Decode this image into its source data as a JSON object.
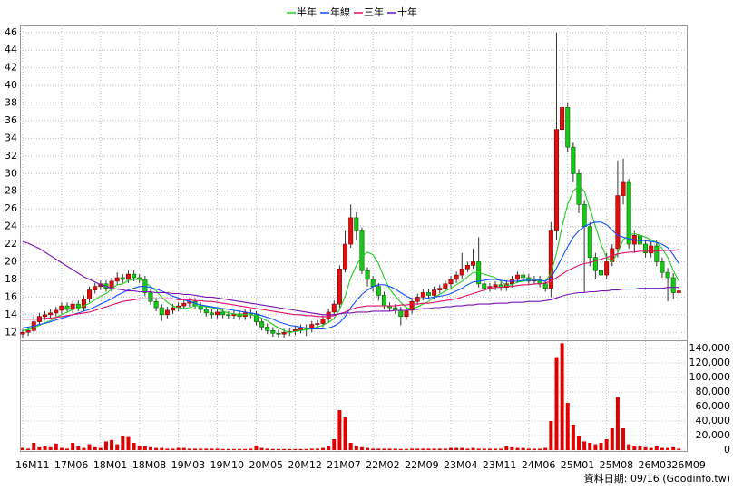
{
  "chart_data": {
    "type": "candlestick",
    "legend": "top",
    "grid": true,
    "up_color": "#e01010",
    "down_color": "#18c818",
    "ylim": [
      11.1,
      46.8
    ],
    "yticks": [
      12,
      14,
      16,
      18,
      20,
      22,
      24,
      26,
      28,
      30,
      32,
      34,
      36,
      38,
      40,
      42,
      44,
      46
    ],
    "categories": [
      "16M11",
      null,
      null,
      null,
      null,
      null,
      null,
      "17M06",
      null,
      null,
      null,
      null,
      null,
      null,
      "18M01",
      null,
      null,
      null,
      null,
      null,
      null,
      "18M08",
      null,
      null,
      null,
      null,
      null,
      null,
      "19M03",
      null,
      null,
      null,
      null,
      null,
      null,
      "19M10",
      null,
      null,
      null,
      null,
      null,
      null,
      "20M05",
      null,
      null,
      null,
      null,
      null,
      null,
      "20M12",
      null,
      null,
      null,
      null,
      null,
      null,
      "21M07",
      null,
      null,
      null,
      null,
      null,
      null,
      "22M02",
      null,
      null,
      null,
      null,
      null,
      null,
      "22M09",
      null,
      null,
      null,
      null,
      null,
      null,
      "23M04",
      null,
      null,
      null,
      null,
      null,
      null,
      "23M11",
      null,
      null,
      null,
      null,
      null,
      null,
      "24M06",
      null,
      null,
      null,
      null,
      null,
      null,
      "25M01",
      null,
      null,
      null,
      null,
      null,
      null,
      "25M08",
      null,
      null,
      null,
      null,
      null,
      null,
      "26M03",
      null,
      null,
      null,
      null,
      null,
      "26M09"
    ],
    "open": [
      11.8,
      12.0,
      12.2,
      13.2,
      13.8,
      14.0,
      14.2,
      14.5,
      15.0,
      14.6,
      15.2,
      14.8,
      15.8,
      16.8,
      17.2,
      17.5,
      17.0,
      17.8,
      18.2,
      18.0,
      18.6,
      18.2,
      18.0,
      16.5,
      15.5,
      14.8,
      14.0,
      14.5,
      14.8,
      15.0,
      15.3,
      15.5,
      15.0,
      14.6,
      14.2,
      14.0,
      14.3,
      14.0,
      13.9,
      14.1,
      13.8,
      14.2,
      14.0,
      13.2,
      12.6,
      12.2,
      11.9,
      11.8,
      12.0,
      12.1,
      12.3,
      12.5,
      12.4,
      12.9,
      13.0,
      13.5,
      14.3,
      15.2,
      19.2,
      22.0,
      25.0,
      23.5,
      19.0,
      18.0,
      17.2,
      16.2,
      15.0,
      14.8,
      14.5,
      13.8,
      14.5,
      15.5,
      16.0,
      16.5,
      16.2,
      16.8,
      17.0,
      17.5,
      18.0,
      18.5,
      19.2,
      19.6,
      20.0,
      17.5,
      17.0,
      17.2,
      17.4,
      17.1,
      17.5,
      18.0,
      18.5,
      18.2,
      17.8,
      18.0,
      17.5,
      17.0,
      23.5,
      35.0,
      37.5,
      33.0,
      30.0,
      26.5,
      24.0,
      20.5,
      19.0,
      18.5,
      20.0,
      21.5,
      27.5,
      29.0,
      22.0,
      23.0,
      22.0,
      21.0,
      21.8,
      20.0,
      18.8,
      18.2,
      16.5
    ],
    "high": [
      12.4,
      12.6,
      14.0,
      14.2,
      14.4,
      14.6,
      14.9,
      15.4,
      15.4,
      15.6,
      15.6,
      16.2,
      17.2,
      17.6,
      17.9,
      17.9,
      18.2,
      18.8,
      18.6,
      19.0,
      19.0,
      18.6,
      18.4,
      16.9,
      15.9,
      15.2,
      14.9,
      15.2,
      15.4,
      15.7,
      15.9,
      15.9,
      15.4,
      14.9,
      14.6,
      14.7,
      14.7,
      14.4,
      14.5,
      14.5,
      14.6,
      14.6,
      14.4,
      13.6,
      13.0,
      12.6,
      12.3,
      12.4,
      12.5,
      12.7,
      12.9,
      12.9,
      13.3,
      13.4,
      13.9,
      14.7,
      15.6,
      19.6,
      23.5,
      26.5,
      25.6,
      23.9,
      19.4,
      18.4,
      17.6,
      16.6,
      15.4,
      15.2,
      14.9,
      14.9,
      15.9,
      16.4,
      16.9,
      16.9,
      17.2,
      17.4,
      17.9,
      18.4,
      18.9,
      21.0,
      20.0,
      21.5,
      22.8,
      17.9,
      17.6,
      17.8,
      17.8,
      17.9,
      18.4,
      18.9,
      18.9,
      18.6,
      18.4,
      18.4,
      17.9,
      24.5,
      46.0,
      44.3,
      38.0,
      33.5,
      30.5,
      27.0,
      24.5,
      21.0,
      19.5,
      21.0,
      22.0,
      31.5,
      31.7,
      29.4,
      23.5,
      24.0,
      22.5,
      22.3,
      22.5,
      20.5,
      19.3,
      18.7,
      17.1
    ],
    "low": [
      11.4,
      11.6,
      11.8,
      12.8,
      13.4,
      13.6,
      13.8,
      14.1,
      14.2,
      14.2,
      14.4,
      14.4,
      15.4,
      16.4,
      16.8,
      16.6,
      16.6,
      17.4,
      17.6,
      17.6,
      17.8,
      17.6,
      16.1,
      15.1,
      14.4,
      13.3,
      13.6,
      14.1,
      14.4,
      14.6,
      14.9,
      14.6,
      14.2,
      13.8,
      13.6,
      13.6,
      13.6,
      13.5,
      13.5,
      13.4,
      13.4,
      13.6,
      12.8,
      12.2,
      11.8,
      11.5,
      11.4,
      11.4,
      11.6,
      11.7,
      11.9,
      11.6,
      12.0,
      12.6,
      12.6,
      13.1,
      13.9,
      14.8,
      18.8,
      21.6,
      22.5,
      18.6,
      17.2,
      16.6,
      15.6,
      14.6,
      14.4,
      14.1,
      12.8,
      13.4,
      14.1,
      15.1,
      15.6,
      15.8,
      15.8,
      16.4,
      16.6,
      17.1,
      17.6,
      18.1,
      18.8,
      19.2,
      17.1,
      16.6,
      16.6,
      16.8,
      16.7,
      16.7,
      17.1,
      17.6,
      17.8,
      17.4,
      17.4,
      17.1,
      16.6,
      16.0,
      22.5,
      33.0,
      32.5,
      29.0,
      25.5,
      16.5,
      19.5,
      18.0,
      18.0,
      18.0,
      19.5,
      20.5,
      26.5,
      21.5,
      21.0,
      21.5,
      20.5,
      20.5,
      19.5,
      18.2,
      15.5,
      15.8,
      16.2
    ],
    "close": [
      12.0,
      12.2,
      13.2,
      13.8,
      14.0,
      14.2,
      14.5,
      15.0,
      14.6,
      15.2,
      14.8,
      15.8,
      16.8,
      17.2,
      17.5,
      17.0,
      17.8,
      18.2,
      18.0,
      18.6,
      18.2,
      18.0,
      16.5,
      15.5,
      14.8,
      14.0,
      14.5,
      14.8,
      15.0,
      15.3,
      15.5,
      15.0,
      14.6,
      14.2,
      14.0,
      14.3,
      14.0,
      13.9,
      14.1,
      13.8,
      14.2,
      14.0,
      13.2,
      12.6,
      12.2,
      11.9,
      11.8,
      12.0,
      12.1,
      12.3,
      12.5,
      12.4,
      12.9,
      13.0,
      13.5,
      14.3,
      15.2,
      19.2,
      22.0,
      25.0,
      23.5,
      19.0,
      18.0,
      17.2,
      16.2,
      15.0,
      14.8,
      14.5,
      13.8,
      14.5,
      15.5,
      16.0,
      16.5,
      16.2,
      16.8,
      17.0,
      17.5,
      18.0,
      18.5,
      19.2,
      19.6,
      20.0,
      17.5,
      17.0,
      17.2,
      17.4,
      17.1,
      17.5,
      18.0,
      18.5,
      18.2,
      17.8,
      18.0,
      17.5,
      17.0,
      23.5,
      35.0,
      37.5,
      33.0,
      30.0,
      26.5,
      24.0,
      20.5,
      19.0,
      18.5,
      20.0,
      21.5,
      27.5,
      29.0,
      22.0,
      23.0,
      22.0,
      21.0,
      21.8,
      20.0,
      18.8,
      18.2,
      16.5,
      16.7
    ],
    "series": [
      {
        "name": "半年",
        "color": "#22cc22",
        "values": [
          12.2,
          12.3,
          12.5,
          12.8,
          13.1,
          13.3,
          13.7,
          14.0,
          14.3,
          14.6,
          14.7,
          15.0,
          15.3,
          15.7,
          16.1,
          16.4,
          16.9,
          17.4,
          17.5,
          17.9,
          18.0,
          18.0,
          17.7,
          17.2,
          16.7,
          16.0,
          15.4,
          15.0,
          14.8,
          14.7,
          14.8,
          15.0,
          15.0,
          14.9,
          14.8,
          14.7,
          14.4,
          14.2,
          14.1,
          14.0,
          14.0,
          14.0,
          13.9,
          13.6,
          13.3,
          12.9,
          12.5,
          12.2,
          12.0,
          12.1,
          12.2,
          12.3,
          12.4,
          12.6,
          12.8,
          13.1,
          13.6,
          14.6,
          16.1,
          18.2,
          19.6,
          20.6,
          21.1,
          20.8,
          19.8,
          18.2,
          16.9,
          16.1,
          15.4,
          14.8,
          14.6,
          14.9,
          15.2,
          15.5,
          16.0,
          16.3,
          16.7,
          17.0,
          17.4,
          17.8,
          18.3,
          18.8,
          18.8,
          18.6,
          18.4,
          18.2,
          17.8,
          17.3,
          17.4,
          17.7,
          17.8,
          17.9,
          18.0,
          17.9,
          17.8,
          18.7,
          21.0,
          24.0,
          26.5,
          28.0,
          28.6,
          28.0,
          26.0,
          24.0,
          22.0,
          20.5,
          20.0,
          21.0,
          22.5,
          23.0,
          23.2,
          23.0,
          22.8,
          22.5,
          22.2,
          21.5,
          20.5,
          19.0,
          17.8
        ]
      },
      {
        "name": "年線",
        "color": "#1050ff",
        "values": [
          12.5,
          12.6,
          12.7,
          12.9,
          13.0,
          13.2,
          13.4,
          13.6,
          13.8,
          14.0,
          14.2,
          14.4,
          14.6,
          14.9,
          15.2,
          15.5,
          15.8,
          16.2,
          16.5,
          16.8,
          17.0,
          17.2,
          17.2,
          17.1,
          16.9,
          16.7,
          16.4,
          16.1,
          15.9,
          15.7,
          15.5,
          15.3,
          15.1,
          15.0,
          14.9,
          14.8,
          14.7,
          14.6,
          14.5,
          14.4,
          14.3,
          14.2,
          14.1,
          13.9,
          13.7,
          13.5,
          13.2,
          13.0,
          12.8,
          12.7,
          12.6,
          12.5,
          12.4,
          12.4,
          12.4,
          12.5,
          12.7,
          13.1,
          13.8,
          14.8,
          15.6,
          16.3,
          16.8,
          17.2,
          17.4,
          17.4,
          17.2,
          16.9,
          16.5,
          16.1,
          15.8,
          15.8,
          15.8,
          15.9,
          16.0,
          16.1,
          16.2,
          16.4,
          16.7,
          17.0,
          17.4,
          17.7,
          17.8,
          17.9,
          18.0,
          18.0,
          17.9,
          17.8,
          17.8,
          17.8,
          17.9,
          17.9,
          17.9,
          17.9,
          17.8,
          18.2,
          19.3,
          20.5,
          21.7,
          22.8,
          23.5,
          24.0,
          24.3,
          24.5,
          24.5,
          24.2,
          23.6,
          23.0,
          22.8,
          22.6,
          22.5,
          22.4,
          22.4,
          22.3,
          22.2,
          22.0,
          21.6,
          20.8,
          19.8
        ]
      },
      {
        "name": "三年",
        "color": "#e0106a",
        "values": [
          13.5,
          13.5,
          13.5,
          13.5,
          13.6,
          13.6,
          13.7,
          13.8,
          13.9,
          14.0,
          14.1,
          14.2,
          14.3,
          14.5,
          14.7,
          14.9,
          15.1,
          15.3,
          15.5,
          15.6,
          15.7,
          15.8,
          15.8,
          15.8,
          15.8,
          15.8,
          15.8,
          15.8,
          15.7,
          15.7,
          15.7,
          15.6,
          15.6,
          15.5,
          15.5,
          15.4,
          15.3,
          15.2,
          15.1,
          15.0,
          14.9,
          14.8,
          14.7,
          14.6,
          14.5,
          14.4,
          14.3,
          14.2,
          14.1,
          14.0,
          14.0,
          13.9,
          13.9,
          13.8,
          13.8,
          13.8,
          13.9,
          14.1,
          14.3,
          14.6,
          14.8,
          14.9,
          15.0,
          15.0,
          15.0,
          15.0,
          15.0,
          15.0,
          15.1,
          15.1,
          15.2,
          15.2,
          15.3,
          15.3,
          15.4,
          15.5,
          15.6,
          15.7,
          15.8,
          16.0,
          16.2,
          16.4,
          16.6,
          16.8,
          17.0,
          17.1,
          17.1,
          17.2,
          17.2,
          17.3,
          17.4,
          17.4,
          17.5,
          17.5,
          17.6,
          17.8,
          18.2,
          18.6,
          19.0,
          19.3,
          19.6,
          19.8,
          19.9,
          20.1,
          20.3,
          20.5,
          20.7,
          20.9,
          21.0,
          21.1,
          21.1,
          21.2,
          21.2,
          21.2,
          21.2,
          21.3,
          21.3,
          21.3,
          21.4
        ]
      },
      {
        "name": "十年",
        "color": "#7a10b8",
        "values": [
          22.3,
          22.1,
          21.8,
          21.5,
          21.1,
          20.7,
          20.3,
          19.9,
          19.5,
          19.1,
          18.7,
          18.3,
          18.0,
          17.7,
          17.4,
          17.2,
          17.0,
          16.9,
          16.8,
          16.7,
          16.7,
          16.6,
          16.6,
          16.6,
          16.5,
          16.5,
          16.5,
          16.4,
          16.4,
          16.3,
          16.3,
          16.2,
          16.1,
          16.0,
          16.0,
          15.9,
          15.8,
          15.7,
          15.6,
          15.5,
          15.4,
          15.3,
          15.2,
          15.1,
          15.0,
          14.9,
          14.8,
          14.7,
          14.6,
          14.5,
          14.4,
          14.3,
          14.2,
          14.1,
          14.0,
          14.0,
          14.0,
          14.1,
          14.2,
          14.2,
          14.3,
          14.3,
          14.3,
          14.4,
          14.4,
          14.4,
          14.4,
          14.5,
          14.5,
          14.5,
          14.6,
          14.6,
          14.7,
          14.7,
          14.8,
          14.8,
          14.9,
          14.9,
          15.0,
          15.0,
          15.1,
          15.1,
          15.2,
          15.2,
          15.2,
          15.3,
          15.3,
          15.3,
          15.4,
          15.4,
          15.4,
          15.5,
          15.5,
          15.5,
          15.6,
          15.7,
          15.9,
          16.1,
          16.3,
          16.4,
          16.5,
          16.5,
          16.6,
          16.6,
          16.7,
          16.7,
          16.8,
          16.8,
          16.9,
          16.9,
          16.9,
          17.0,
          17.0,
          17.0,
          17.0,
          17.0,
          17.1,
          17.1,
          17.1
        ]
      }
    ],
    "volume": {
      "color": "#e00000",
      "ylim": [
        0,
        150000
      ],
      "yticks": [
        0,
        {
          "value": 20000,
          "label": "20,000"
        },
        {
          "value": 40000,
          "label": "40,000"
        },
        {
          "value": 60000,
          "label": "60,000"
        },
        {
          "value": 80000,
          "label": "80,000"
        },
        {
          "value": 100000,
          "label": "100,000"
        },
        {
          "value": 120000,
          "label": "120,000"
        },
        {
          "value": 140000,
          "label": "140,000"
        }
      ],
      "values": [
        3000,
        2000,
        10000,
        4000,
        5000,
        4000,
        9000,
        3000,
        2000,
        10000,
        5000,
        3000,
        8000,
        4000,
        3000,
        12000,
        14000,
        8000,
        20000,
        18000,
        10000,
        6000,
        5000,
        4000,
        3000,
        3000,
        2000,
        2000,
        3000,
        3000,
        2000,
        2000,
        2000,
        2000,
        2000,
        2000,
        1500,
        1500,
        1500,
        1500,
        1500,
        2000,
        6000,
        3000,
        2000,
        1500,
        1500,
        1500,
        1500,
        1500,
        1500,
        1500,
        2000,
        2000,
        3000,
        5000,
        15000,
        55000,
        45000,
        10000,
        6000,
        4000,
        3000,
        2000,
        2000,
        2000,
        2000,
        2000,
        1500,
        1500,
        2000,
        2000,
        2000,
        2000,
        2000,
        2000,
        2000,
        3000,
        3000,
        3000,
        2000,
        3000,
        2000,
        2000,
        2000,
        2000,
        2000,
        5000,
        4000,
        3000,
        3000,
        2000,
        2000,
        2000,
        3000,
        40000,
        128000,
        147000,
        65000,
        35000,
        20000,
        12000,
        10000,
        8000,
        10000,
        15000,
        30000,
        73000,
        30000,
        8000,
        6000,
        5000,
        4000,
        3000,
        5000,
        3000,
        3000,
        4000,
        2000
      ]
    },
    "footnote": "資料日期: 09/16  (Goodinfo.tw)"
  }
}
